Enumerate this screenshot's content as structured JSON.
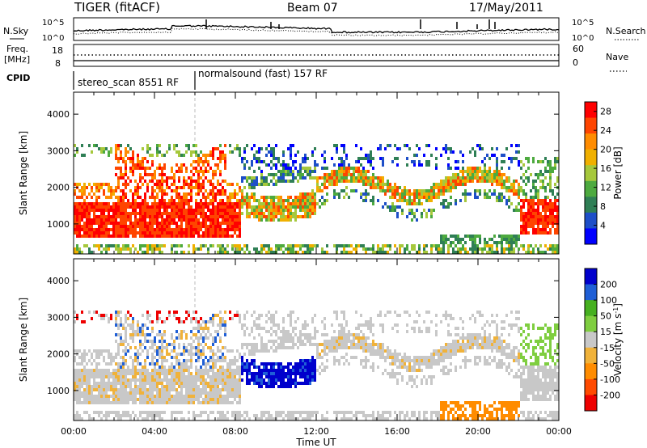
{
  "header": {
    "radar": "TIGER (fitACF)",
    "beam": "Beam 07",
    "date": "17/May/2011"
  },
  "top_panel": {
    "left_label": "N.Sky",
    "right_label": "N.Search",
    "y_ticks": [
      "10^5",
      "10^0"
    ]
  },
  "freq_panel": {
    "left_label_1": "Freq.",
    "left_label_2": "[MHz]",
    "left_ticks": [
      "18",
      "8"
    ],
    "right_label": "Nave",
    "right_ticks": [
      "60",
      "0"
    ]
  },
  "cpid": {
    "label": "CPID",
    "modes": [
      {
        "name": "stereo_scan",
        "id": "8551",
        "suffix": "RF",
        "start": "00:00"
      },
      {
        "name": "normalsound (fast)",
        "id": "157",
        "suffix": "RF",
        "start": "06:00"
      }
    ]
  },
  "colors": {
    "power": [
      "#0000ff",
      "#1e4fc8",
      "#2f7f55",
      "#4daa3f",
      "#a6c83c",
      "#f0b000",
      "#ff8c00",
      "#ff4500",
      "#ff0000"
    ],
    "velocity": [
      "#0000cc",
      "#1f5fd6",
      "#46b020",
      "#7fce40",
      "#c8c8c8",
      "#f0b23a",
      "#ff8c00",
      "#ff4a00",
      "#ee0000"
    ]
  },
  "chart_data": [
    {
      "type": "heatmap",
      "title": "",
      "ylabel": "Slant Range [km]",
      "xlabel": "",
      "x_ticks": [
        "00:00",
        "04:00",
        "08:00",
        "12:00",
        "16:00",
        "20:00",
        "00:00"
      ],
      "x_range_hours": [
        0,
        24
      ],
      "y_ticks": [
        1000,
        2000,
        3000,
        4000
      ],
      "ylim": [
        180,
        4600
      ],
      "colorbar": {
        "label": "Power [dB]",
        "ticks": [
          4,
          8,
          12,
          16,
          20,
          24,
          28
        ],
        "range": [
          0,
          30
        ]
      },
      "echo_regions": [
        {
          "hours": [
            0,
            8
          ],
          "range_km": [
            700,
            3000
          ],
          "power_db": 28
        },
        {
          "hours": [
            8,
            22
          ],
          "range_km": [
            1500,
            2600
          ],
          "power_db": 16
        },
        {
          "hours": [
            22,
            24
          ],
          "range_km": [
            800,
            1600
          ],
          "power_db": 28
        }
      ]
    },
    {
      "type": "heatmap",
      "title": "",
      "ylabel": "Slant Range [km]",
      "xlabel": "Time UT",
      "x_ticks": [
        "00:00",
        "04:00",
        "08:00",
        "12:00",
        "16:00",
        "20:00",
        "00:00"
      ],
      "x_range_hours": [
        0,
        24
      ],
      "y_ticks": [
        1000,
        2000,
        3000,
        4000
      ],
      "ylim": [
        180,
        4600
      ],
      "colorbar": {
        "label": "Velocity [m s^-1]",
        "ticks": [
          200,
          100,
          50,
          15,
          -15,
          -50,
          -100,
          -200
        ],
        "range": [
          -250,
          250
        ]
      },
      "echo_regions": [
        {
          "hours": [
            0,
            9
          ],
          "range_km": [
            800,
            2400
          ],
          "velocity_ms": 0
        },
        {
          "hours": [
            8,
            12
          ],
          "range_km": [
            1100,
            2000
          ],
          "velocity_ms": 200
        },
        {
          "hours": [
            18,
            22
          ],
          "range_km": [
            200,
            600
          ],
          "velocity_ms": -80
        }
      ]
    }
  ]
}
